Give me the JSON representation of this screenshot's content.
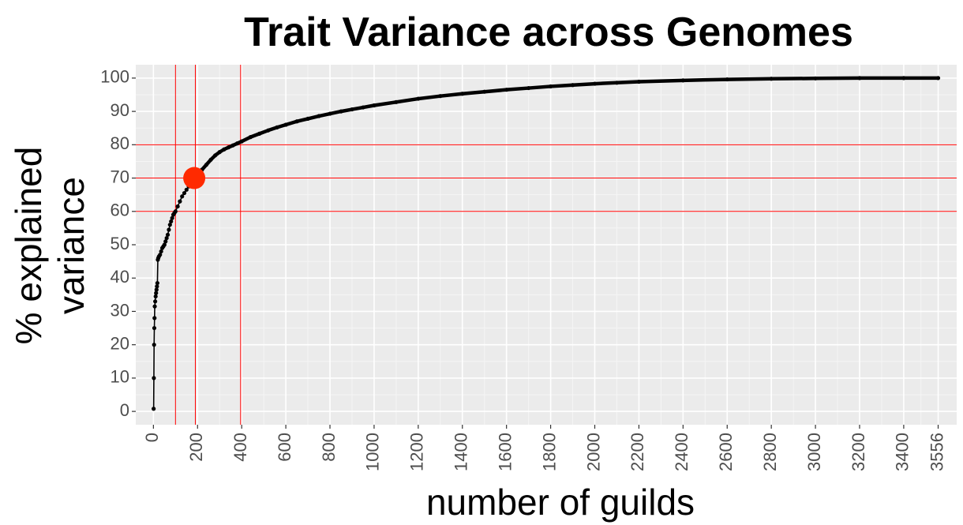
{
  "chart_data": {
    "type": "line",
    "title": "Trait Variance across Genomes",
    "xlabel": "number of guilds",
    "ylabel_lines": [
      "% explained",
      "variance"
    ],
    "xlim": [
      -80,
      3640
    ],
    "ylim": [
      -4,
      104
    ],
    "x_ticks": [
      0,
      200,
      400,
      600,
      800,
      1000,
      1200,
      1400,
      1600,
      1800,
      2000,
      2200,
      2400,
      2600,
      2800,
      3000,
      3200,
      3400,
      3556
    ],
    "x_tick_labels": [
      "0",
      "200",
      "400",
      "600",
      "800",
      "1000",
      "1200",
      "1400",
      "1600",
      "1800",
      "2000",
      "2200",
      "2400",
      "2600",
      "2800",
      "3000",
      "3200",
      "3400",
      "3556"
    ],
    "y_ticks": [
      0,
      10,
      20,
      30,
      40,
      50,
      60,
      70,
      80,
      90,
      100
    ],
    "y_tick_labels": [
      "0",
      "10",
      "20",
      "30",
      "40",
      "50",
      "60",
      "70",
      "80",
      "90",
      "100"
    ],
    "grid": true,
    "series": [
      {
        "color": "#000000",
        "x": [
          1,
          2,
          3,
          4,
          5,
          6,
          8,
          10,
          12,
          14,
          16,
          18,
          20,
          22,
          25,
          30,
          35,
          40,
          45,
          50,
          55,
          60,
          65,
          70,
          75,
          80,
          85,
          90,
          95,
          100,
          110,
          120,
          130,
          140,
          150,
          160,
          170,
          180,
          190,
          200,
          220,
          240,
          260,
          280,
          300,
          320,
          340,
          360,
          380,
          400,
          440,
          480,
          520,
          560,
          600,
          650,
          700,
          750,
          800,
          850,
          900,
          950,
          1000,
          1100,
          1200,
          1300,
          1400,
          1500,
          1600,
          1700,
          1800,
          1900,
          2000,
          2100,
          2200,
          2400,
          2600,
          2800,
          3000,
          3200,
          3400,
          3556
        ],
        "y": [
          0.8,
          10,
          20,
          25,
          28,
          31.5,
          33,
          34.5,
          35.5,
          36.5,
          37.5,
          38.5,
          45.5,
          46,
          46.5,
          47,
          48,
          49,
          49.5,
          50,
          51,
          52,
          53,
          54.5,
          56,
          57,
          58,
          59,
          59.5,
          60,
          61.5,
          63,
          64.5,
          65.5,
          66.5,
          67.5,
          68.5,
          69.2,
          70,
          70.8,
          72.5,
          74,
          75.5,
          76.8,
          77.8,
          78.6,
          79.2,
          79.8,
          80.4,
          81,
          82.3,
          83.3,
          84.3,
          85.2,
          86,
          87,
          87.8,
          88.6,
          89.3,
          90,
          90.6,
          91.2,
          91.8,
          92.8,
          93.8,
          94.6,
          95.3,
          95.9,
          96.5,
          97,
          97.5,
          97.9,
          98.3,
          98.6,
          98.9,
          99.3,
          99.6,
          99.8,
          99.9,
          100,
          100,
          100
        ]
      }
    ],
    "reference_lines": {
      "color": "#ff0000",
      "vertical": [
        100,
        190,
        395
      ],
      "horizontal": [
        60,
        70,
        80
      ]
    },
    "highlight_point": {
      "x": 185,
      "y": 70,
      "color": "#ff2a00"
    }
  }
}
